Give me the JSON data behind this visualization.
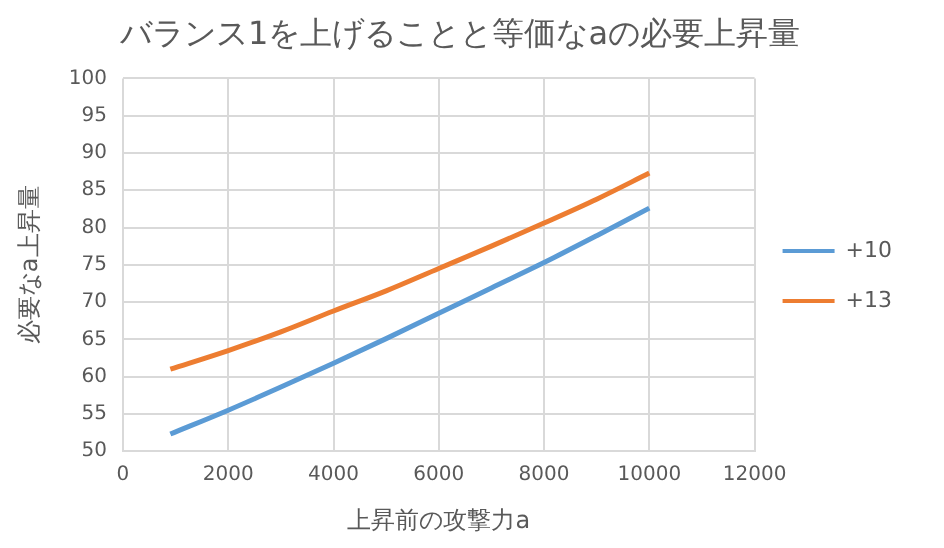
{
  "chart_data": {
    "type": "line",
    "title": "バランス1を上げることと等価なaの必要上昇量",
    "xlabel": "上昇前の攻撃力a",
    "ylabel": "必要なa上昇量",
    "x": [
      900,
      2000,
      3000,
      4000,
      5000,
      6000,
      7000,
      8000,
      9000,
      10000
    ],
    "series": [
      {
        "name": "+10",
        "color": "#5b9bd5",
        "values": [
          52.3,
          55.5,
          58.6,
          61.8,
          65.1,
          68.5,
          71.9,
          75.3,
          78.9,
          82.6
        ]
      },
      {
        "name": "+13",
        "color": "#ed7d31",
        "values": [
          61.0,
          63.5,
          66.0,
          68.8,
          71.5,
          74.5,
          77.5,
          80.6,
          83.8,
          87.3
        ]
      }
    ],
    "xlim": [
      0,
      12000
    ],
    "xticks": [
      0,
      2000,
      4000,
      6000,
      8000,
      10000,
      12000
    ],
    "ylim": [
      50,
      100
    ],
    "yticks": [
      50,
      55,
      60,
      65,
      70,
      75,
      80,
      85,
      90,
      95,
      100
    ],
    "grid": true,
    "legend": "right",
    "marker": "none",
    "line_style": "solid"
  }
}
